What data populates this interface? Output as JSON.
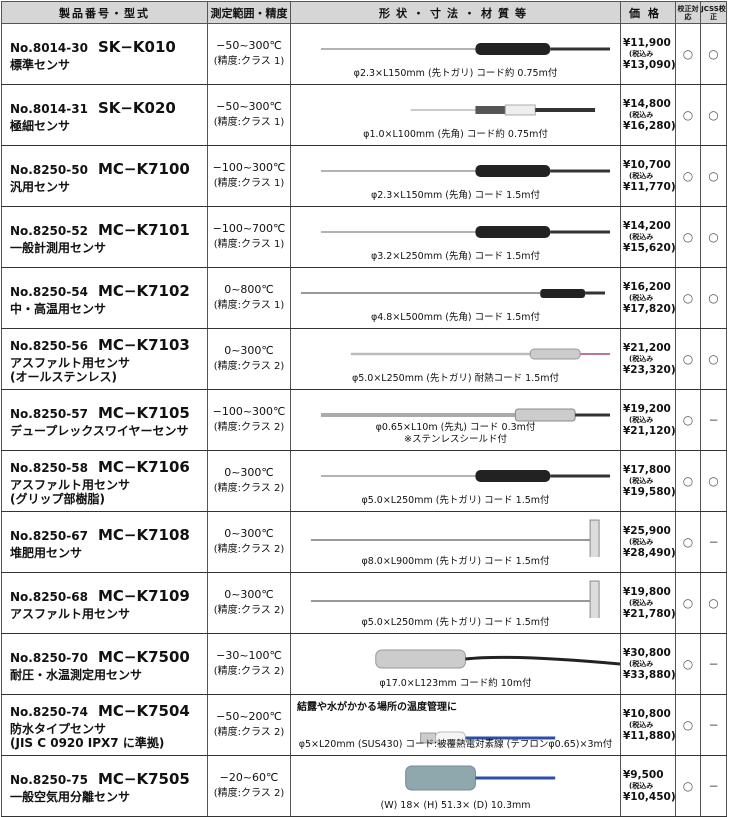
{
  "header": {
    "col_model": "製品番号・型式",
    "col_range": "測定範囲・精度",
    "col_shape": "形状・寸法・材質等",
    "col_price": "価格",
    "col_cal": "校正対応",
    "col_jcss": "JCSS校正"
  },
  "tax_label": "(税込み",
  "rows": [
    {
      "no": "No.8014-30",
      "model": "SK−K010",
      "name": "標準センサ",
      "range": "−50~300℃",
      "acc": "(精度:クラス 1)",
      "desc": "φ2.3×L150mm (先トガリ) コード約 0.75m付",
      "price": "¥11,900",
      "price_tax": "¥13,090)",
      "cal": "○",
      "jcss": "○",
      "probe": "dark"
    },
    {
      "no": "No.8014-31",
      "model": "SK−K020",
      "name": "極細センサ",
      "range": "−50~300℃",
      "acc": "(精度:クラス 1)",
      "desc": "φ1.0×L100mm (先角) コード約 0.75m付",
      "price": "¥14,800",
      "price_tax": "¥16,280)",
      "cal": "○",
      "jcss": "○",
      "probe": "thin"
    },
    {
      "no": "No.8250-50",
      "model": "MC−K7100",
      "name": "汎用センサ",
      "range": "−100~300℃",
      "acc": "(精度:クラス 1)",
      "desc": "φ2.3×L150mm (先角) コード 1.5m付",
      "price": "¥10,700",
      "price_tax": "¥11,770)",
      "cal": "○",
      "jcss": "○",
      "probe": "dark"
    },
    {
      "no": "No.8250-52",
      "model": "MC−K7101",
      "name": "一般計測用センサ",
      "range": "−100~700℃",
      "acc": "(精度:クラス 1)",
      "desc": "φ3.2×L250mm (先角) コード 1.5m付",
      "price": "¥14,200",
      "price_tax": "¥15,620)",
      "cal": "○",
      "jcss": "○",
      "probe": "dark"
    },
    {
      "no": "No.8250-54",
      "model": "MC−K7102",
      "name": "中・高温用センサ",
      "range": "0~800℃",
      "acc": "(精度:クラス 1)",
      "desc": "φ4.8×L500mm (先角) コード 1.5m付",
      "price": "¥16,200",
      "price_tax": "¥17,820)",
      "cal": "○",
      "jcss": "○",
      "probe": "long"
    },
    {
      "no": "No.8250-56",
      "model": "MC−K7103",
      "name": "アスファルト用センサ\n(オールステンレス)",
      "range": "0~300℃",
      "acc": "(精度:クラス 2)",
      "desc": "φ5.0×L250mm (先トガリ) 耐熱コード 1.5m付",
      "price": "¥21,200",
      "price_tax": "¥23,320)",
      "cal": "○",
      "jcss": "○",
      "probe": "steel"
    },
    {
      "no": "No.8250-57",
      "model": "MC−K7105",
      "name": "デュープレックスワイヤーセンサ",
      "range": "−100~300℃",
      "acc": "(精度:クラス 2)",
      "desc": "φ0.65×L10m (先丸) コード 0.3m付\n※ステンレスシールド付",
      "price": "¥19,200",
      "price_tax": "¥21,120)",
      "cal": "○",
      "jcss": "−",
      "probe": "wire"
    },
    {
      "no": "No.8250-58",
      "model": "MC−K7106",
      "name": "アスファルト用センサ\n(グリップ部樹脂)",
      "range": "0~300℃",
      "acc": "(精度:クラス 2)",
      "desc": "φ5.0×L250mm (先トガリ) コード 1.5m付",
      "price": "¥17,800",
      "price_tax": "¥19,580)",
      "cal": "○",
      "jcss": "○",
      "probe": "dark"
    },
    {
      "no": "No.8250-67",
      "model": "MC−K7108",
      "name": "堆肥用センサ",
      "range": "0~300℃",
      "acc": "(精度:クラス 2)",
      "desc": "φ8.0×L900mm (先トガリ) コード 1.5m付",
      "price": "¥25,900",
      "price_tax": "¥28,490)",
      "cal": "○",
      "jcss": "−",
      "probe": "t"
    },
    {
      "no": "No.8250-68",
      "model": "MC−K7109",
      "name": "アスファルト用センサ",
      "range": "0~300℃",
      "acc": "(精度:クラス 2)",
      "desc": "φ5.0×L250mm (先トガリ) コード 1.5m付",
      "price": "¥19,800",
      "price_tax": "¥21,780)",
      "cal": "○",
      "jcss": "○",
      "probe": "t"
    },
    {
      "no": "No.8250-70",
      "model": "MC−K7500",
      "name": "耐圧・水温測定用センサ",
      "range": "−30~100℃",
      "acc": "(精度:クラス 2)",
      "desc": "φ17.0×L123mm コード約 10m付",
      "price": "¥30,800",
      "price_tax": "¥33,880)",
      "cal": "○",
      "jcss": "−",
      "probe": "fat"
    },
    {
      "no": "No.8250-74",
      "model": "MC−K7504",
      "name": "防水タイプセンサ\n(JIS C 0920 IPX7 に準拠)",
      "range": "−50~200℃",
      "acc": "(精度:クラス 2)",
      "note": "結露や水がかかる場所の温度管理に",
      "desc": "φ5×L20mm (SUS430) コード:被覆熱電対素線 (テフロンφ0.65)×3m付",
      "price": "¥10,800",
      "price_tax": "¥11,880)",
      "cal": "○",
      "jcss": "−",
      "probe": "blue"
    },
    {
      "no": "No.8250-75",
      "model": "MC−K7505",
      "name": "一般空気用分離センサ",
      "range": "−20~60℃",
      "acc": "(精度:クラス 2)",
      "desc": "(W) 18× (H) 51.3× (D) 10.3mm",
      "price": "¥9,500",
      "price_tax": "¥10,450)",
      "cal": "○",
      "jcss": "−",
      "probe": "box"
    }
  ]
}
